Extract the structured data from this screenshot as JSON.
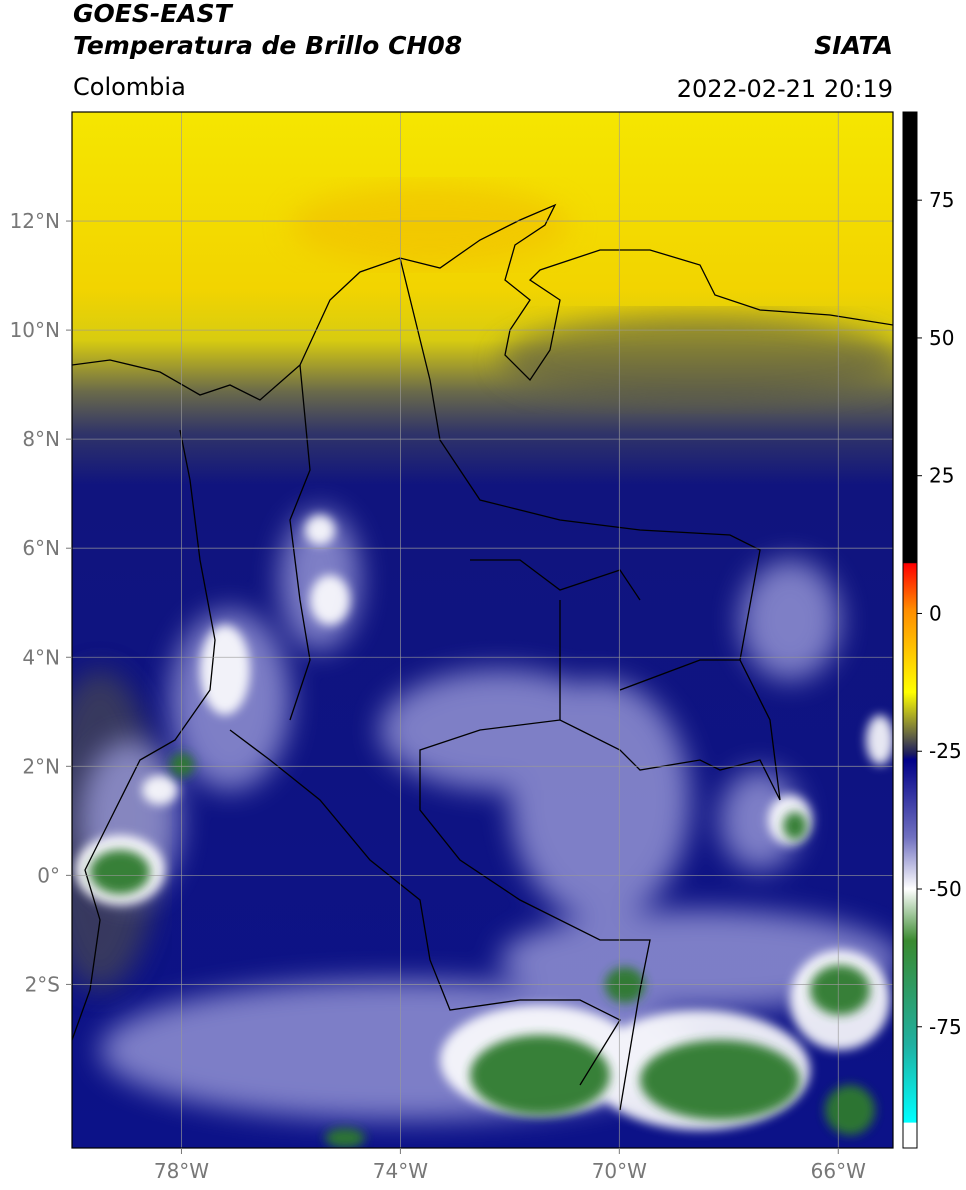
{
  "header": {
    "source": "GOES-EAST",
    "title": "Temperatura de Brillo CH08",
    "region": "Colombia",
    "agency": "SIATA",
    "datetime": "2022-02-21 20:19"
  },
  "map": {
    "xlim": [
      -80,
      -65
    ],
    "ylim": [
      -5,
      14
    ],
    "xticks": [
      {
        "value": -78,
        "label": "78°W"
      },
      {
        "value": -74,
        "label": "74°W"
      },
      {
        "value": -70,
        "label": "70°W"
      },
      {
        "value": -66,
        "label": "66°W"
      }
    ],
    "yticks": [
      {
        "value": 12,
        "label": "12°N"
      },
      {
        "value": 10,
        "label": "10°N"
      },
      {
        "value": 8,
        "label": "8°N"
      },
      {
        "value": 6,
        "label": "6°N"
      },
      {
        "value": 4,
        "label": "4°N"
      },
      {
        "value": 2,
        "label": "2°N"
      },
      {
        "value": 0,
        "label": "0°"
      },
      {
        "value": -2,
        "label": "2°S"
      }
    ],
    "grid": true
  },
  "colorbar": {
    "lim": [
      -97,
      91
    ],
    "ticks": [
      -75,
      -50,
      -25,
      0,
      25,
      50,
      75
    ]
  }
}
